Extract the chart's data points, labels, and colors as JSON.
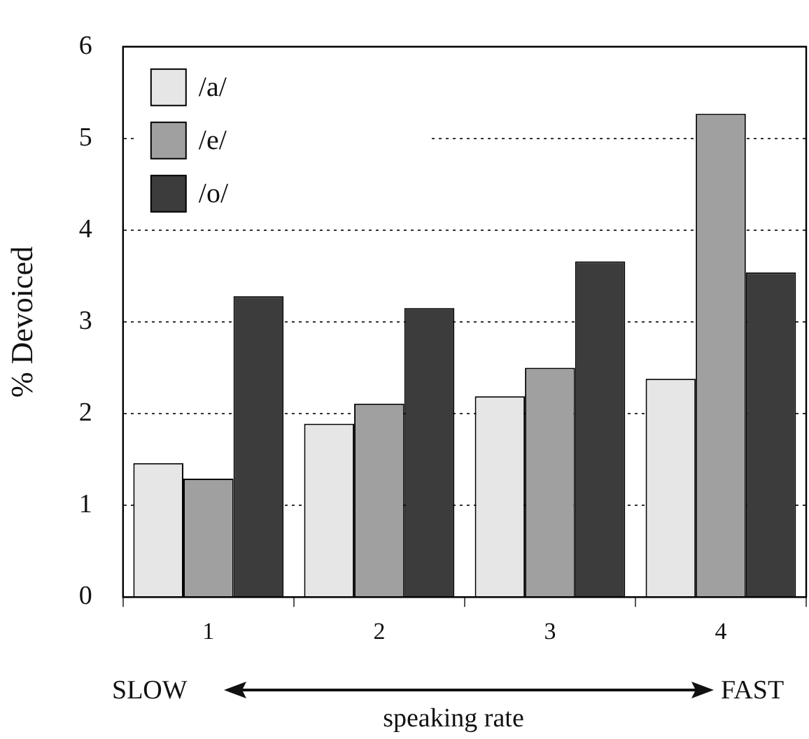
{
  "chart_data": {
    "type": "bar",
    "ylabel": "% Devoiced",
    "xlabel": "speaking rate",
    "categories": [
      "1",
      "2",
      "3",
      "4"
    ],
    "series": [
      {
        "name": "/a/",
        "color": "#e6e6e6",
        "values": [
          1.46,
          1.89,
          2.19,
          2.38
        ]
      },
      {
        "name": "/e/",
        "color": "#a0a0a0",
        "values": [
          1.29,
          2.11,
          2.5,
          5.27
        ]
      },
      {
        "name": "/o/",
        "color": "#3c3c3c",
        "values": [
          3.28,
          3.15,
          3.66,
          3.54
        ]
      }
    ],
    "ylim": [
      0,
      6
    ],
    "yticks": [
      0,
      1,
      2,
      3,
      4,
      5,
      6
    ],
    "grid": "y",
    "legend": "top left",
    "annotations": [
      "SLOW",
      "FAST"
    ]
  }
}
